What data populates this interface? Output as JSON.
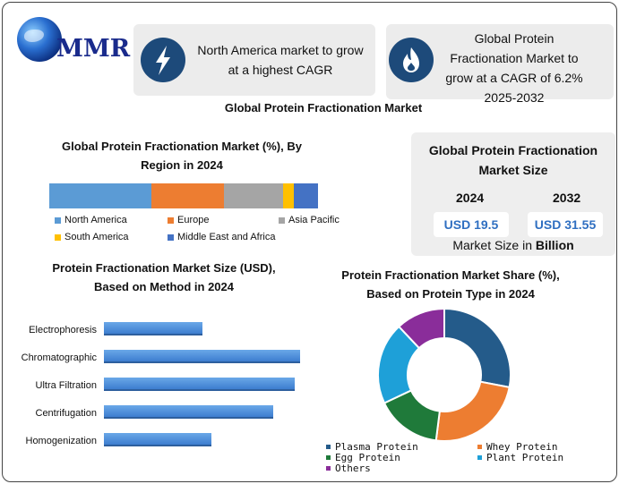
{
  "brand": {
    "logo_text": "MMR"
  },
  "callouts": [
    {
      "icon": "lightning-bolt-icon",
      "text_lines": [
        "North America market to grow",
        "at a highest CAGR"
      ]
    },
    {
      "icon": "flame-icon",
      "text_lines": [
        "Global Protein",
        "Fractionation Market to",
        "grow at a CAGR of 6.2%",
        "2025-2032"
      ]
    }
  ],
  "main_title": "Global Protein Fractionation Market",
  "colors": {
    "north_america": "#5b9bd5",
    "europe": "#ed7d31",
    "asia_pacific": "#a5a5a5",
    "south_america": "#ffc000",
    "middle_east_africa": "#4472c4",
    "method_bar": "#4a8ad6",
    "plasma": "#245b8a",
    "whey": "#ed7d31",
    "egg": "#1f7a3a",
    "plant": "#1ea0d8",
    "others": "#8a2d9a"
  },
  "market_size": {
    "title_lines": [
      "Global Protein Fractionation",
      "Market Size"
    ],
    "year1": "2024",
    "year2": "2032",
    "value1": "USD 19.5",
    "value2": "USD 31.55",
    "unit_prefix": "Market Size in ",
    "unit_bold": "Billion"
  },
  "chart_data": [
    {
      "type": "bar",
      "orientation": "horizontal-stacked",
      "title": "Global Protein Fractionation Market (%), By Region in 2024",
      "title_lines": [
        "Global Protein Fractionation Market (%), By",
        "Region in 2024"
      ],
      "series": [
        {
          "name": "North America",
          "values": [
            38
          ]
        },
        {
          "name": "Europe",
          "values": [
            27
          ]
        },
        {
          "name": "Asia Pacific",
          "values": [
            22
          ]
        },
        {
          "name": "South America",
          "values": [
            4
          ]
        },
        {
          "name": "Middle East and Africa",
          "values": [
            9
          ]
        }
      ],
      "legend_placement": "bottom"
    },
    {
      "type": "bar",
      "orientation": "horizontal",
      "title": "Protein Fractionation Market Size (USD), Based on Method in 2024",
      "title_lines": [
        "Protein Fractionation Market Size (USD),",
        "Based on Method in 2024"
      ],
      "categories": [
        "Electrophoresis",
        "Chromatographic",
        "Ultra Filtration",
        "Centrifugation",
        "Homogenization"
      ],
      "values": [
        3.2,
        6.4,
        6.2,
        5.5,
        3.5
      ],
      "xlim": [
        0,
        7
      ],
      "grid": false
    },
    {
      "type": "pie",
      "variant": "donut",
      "title": "Protein Fractionation Market  Share (%), Based on Protein Type in 2024",
      "title_lines": [
        "Protein Fractionation Market  Share (%),",
        "Based on Protein Type in 2024"
      ],
      "categories": [
        "Plasma Protein",
        "Whey Protein",
        "Egg Protein",
        "Plant Protein",
        "Others"
      ],
      "values": [
        28,
        24,
        16,
        20,
        12
      ],
      "legend_placement": "bottom"
    }
  ]
}
